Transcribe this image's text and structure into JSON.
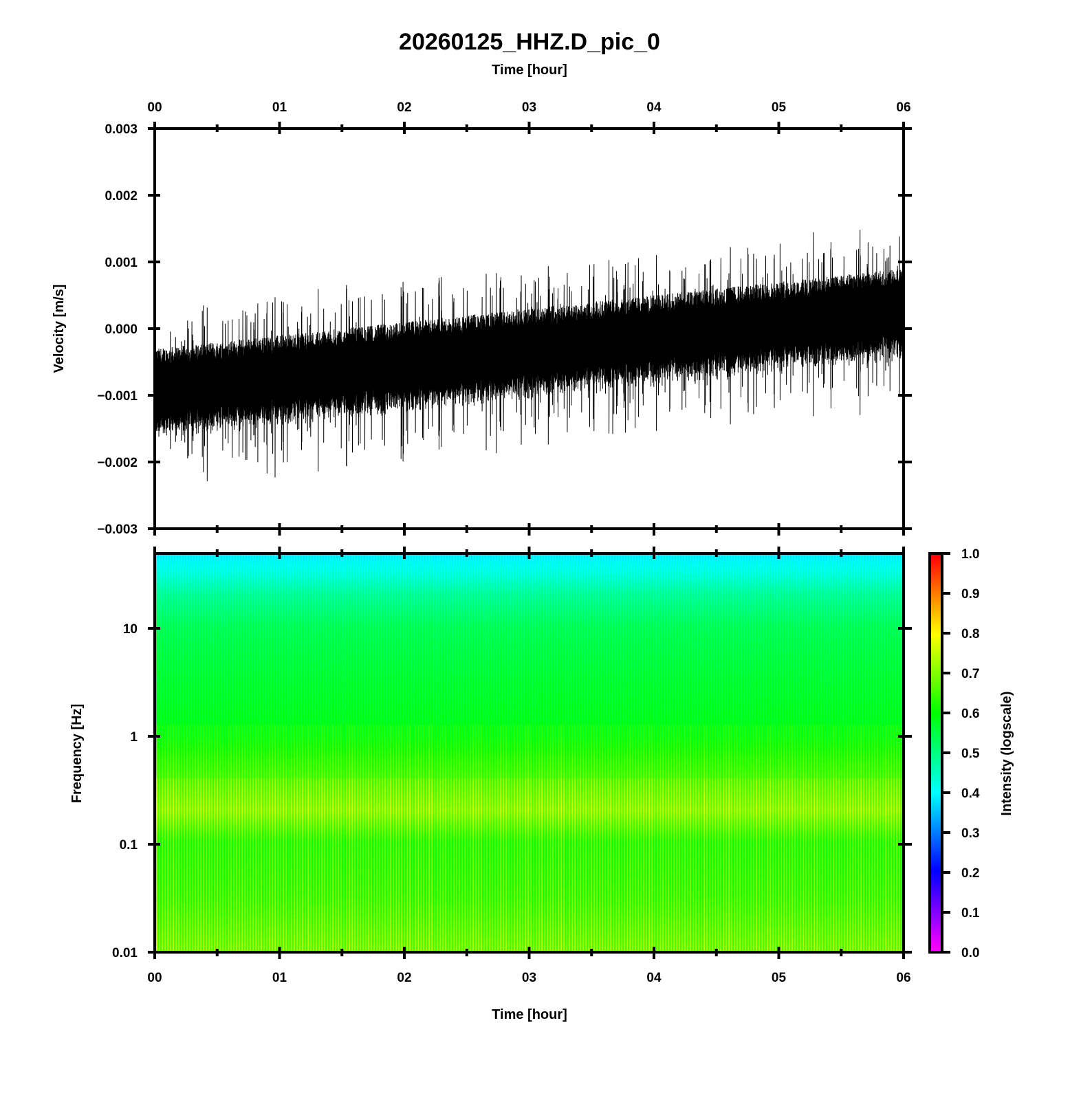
{
  "chart_data": [
    {
      "type": "line",
      "title": "20260125_HHZ.D_pic_0",
      "top_xlabel": "Time [hour]",
      "ylabel": "Velocity [m/s]",
      "xlim": [
        0,
        6
      ],
      "ylim": [
        -0.003,
        0.003
      ],
      "x_ticks": [
        "00",
        "01",
        "02",
        "03",
        "04",
        "05",
        "06"
      ],
      "y_ticks": [
        "0.003",
        "0.002",
        "0.001",
        "0.000",
        "−0.001",
        "−0.002",
        "−0.003"
      ],
      "y_tick_values": [
        0.003,
        0.002,
        0.001,
        0.0,
        -0.001,
        -0.002,
        -0.003
      ],
      "series": [
        {
          "name": "HHZ velocity",
          "color": "#000000",
          "trend_start": -0.0009,
          "trend_end": 0.0003,
          "noise_amplitude": 0.0006,
          "max_value": 0.0016,
          "min_value": -0.0025
        }
      ]
    },
    {
      "type": "heatmap",
      "xlabel": "Time [hour]",
      "ylabel": "Frequency [Hz]",
      "xlim": [
        0,
        6
      ],
      "ylim": [
        0.01,
        50
      ],
      "yscale": "log",
      "x_ticks": [
        "00",
        "01",
        "02",
        "03",
        "04",
        "05",
        "06"
      ],
      "y_ticks": [
        "10",
        "1",
        "0.1",
        "0.01"
      ],
      "y_tick_values": [
        10,
        1,
        0.1,
        0.01
      ],
      "intensity_profile": {
        "frequency_hz": [
          50,
          30,
          20,
          10,
          3,
          1,
          0.6,
          0.4,
          0.2,
          0.1,
          0.03,
          0.01
        ],
        "intensity": [
          0.4,
          0.45,
          0.5,
          0.55,
          0.58,
          0.6,
          0.64,
          0.66,
          0.7,
          0.62,
          0.64,
          0.68
        ]
      },
      "colorbar": {
        "label": "Intensity (logscale)",
        "range": [
          0,
          1
        ],
        "ticks": [
          "0.0",
          "0.1",
          "0.2",
          "0.3",
          "0.4",
          "0.5",
          "0.6",
          "0.7",
          "0.8",
          "0.9",
          "1.0"
        ],
        "colors": [
          "#ff00ff",
          "#0000ff",
          "#00ffff",
          "#00ff00",
          "#ffff00",
          "#ff0000"
        ]
      }
    }
  ]
}
